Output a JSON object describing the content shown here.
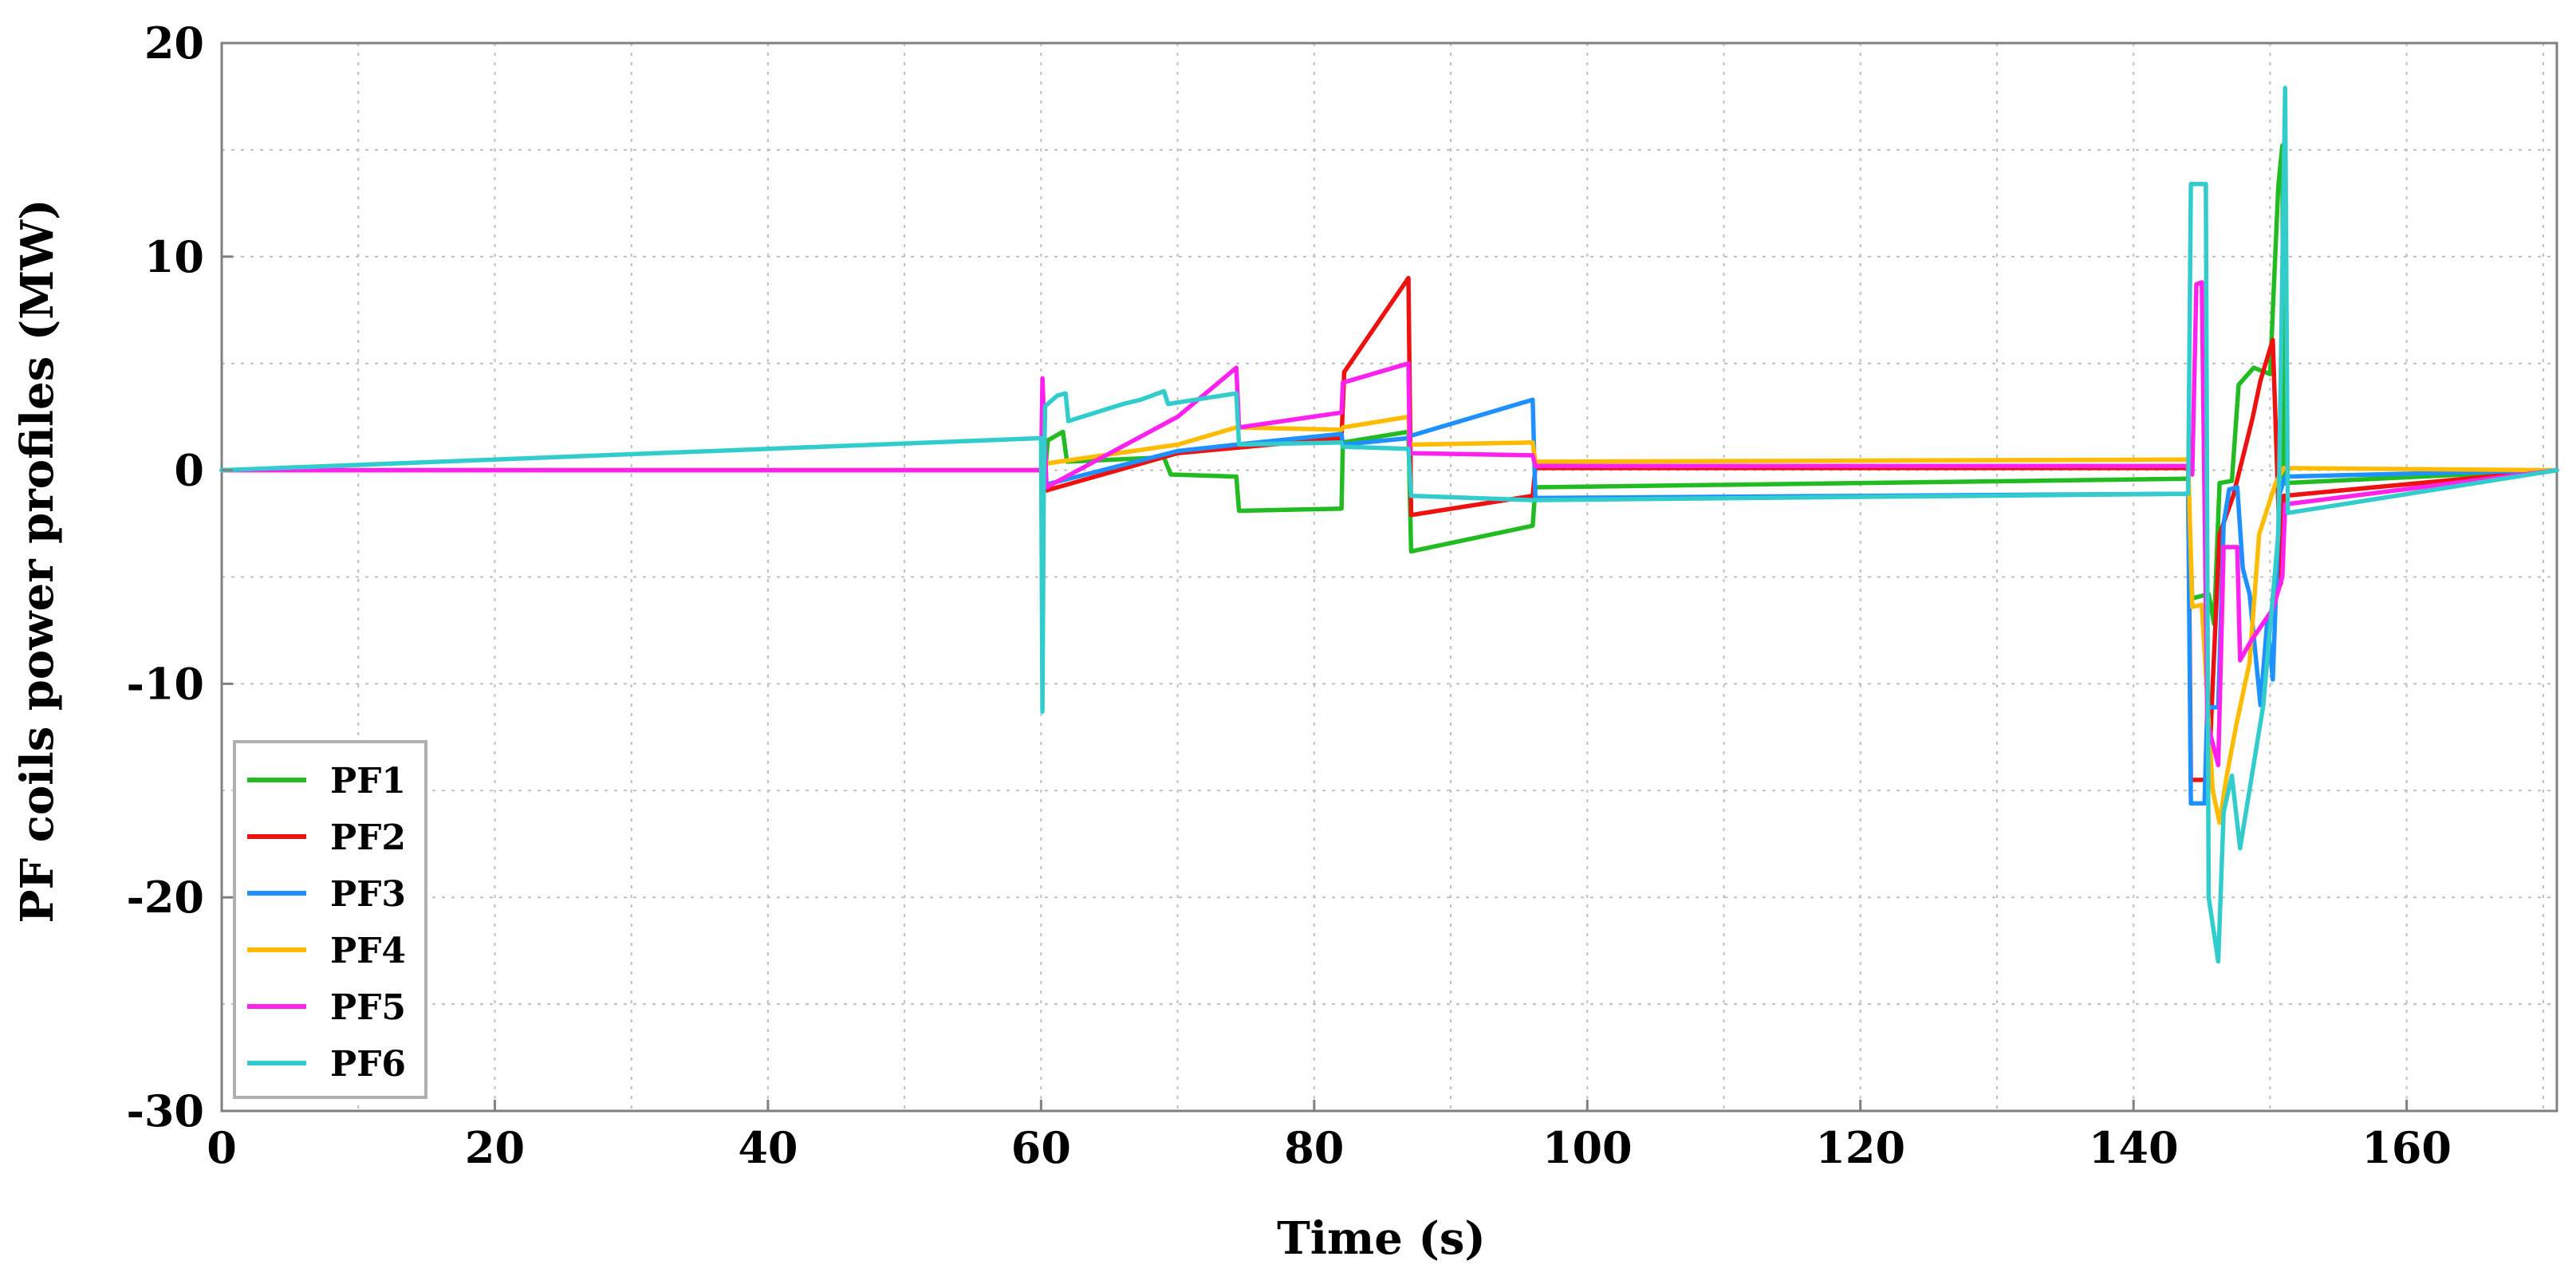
{
  "chart_data": {
    "type": "line",
    "title": "",
    "xlabel": "Time (s)",
    "ylabel": "PF coils power profiles (MW)",
    "xlim": [
      0,
      171
    ],
    "ylim": [
      -30,
      20
    ],
    "x_ticks": [
      0,
      20,
      40,
      60,
      80,
      100,
      120,
      140,
      160
    ],
    "y_ticks": [
      -30,
      -20,
      -10,
      0,
      10,
      20
    ],
    "x_tick_labels": [
      "0",
      "20",
      "40",
      "60",
      "80",
      "100",
      "120",
      "140",
      "160"
    ],
    "y_tick_labels": [
      "-30",
      "-20",
      "-10",
      "0",
      "10",
      "20"
    ],
    "x_minor_grid": [
      10,
      30,
      50,
      70,
      90,
      110,
      130,
      150,
      170
    ],
    "y_minor_grid": [
      -25,
      -15,
      -5,
      5,
      15
    ],
    "grid": true,
    "legend_position": "bottom-left",
    "series": [
      {
        "name": "PF1",
        "color": "#22bb22",
        "points": [
          [
            0,
            0
          ],
          [
            60,
            0
          ],
          [
            60.2,
            -0.8
          ],
          [
            60.5,
            1.4
          ],
          [
            61.6,
            1.8
          ],
          [
            61.9,
            0.4
          ],
          [
            69,
            0.6
          ],
          [
            69.5,
            -0.2
          ],
          [
            74.3,
            -0.3
          ],
          [
            74.5,
            -1.9
          ],
          [
            82,
            -1.8
          ],
          [
            82.1,
            1.3
          ],
          [
            86.9,
            1.8
          ],
          [
            87.1,
            -3.8
          ],
          [
            96,
            -2.6
          ],
          [
            96.2,
            -0.8
          ],
          [
            144,
            -0.4
          ],
          [
            144.3,
            -6
          ],
          [
            145.5,
            -5.8
          ],
          [
            145.9,
            -7.2
          ],
          [
            146.3,
            -0.6
          ],
          [
            147.2,
            -0.5
          ],
          [
            147.7,
            4
          ],
          [
            148.8,
            4.8
          ],
          [
            150,
            4.5
          ],
          [
            150.6,
            13.3
          ],
          [
            150.9,
            15.2
          ],
          [
            151,
            -0.6
          ],
          [
            171,
            0
          ]
        ]
      },
      {
        "name": "PF2",
        "color": "#ee1111",
        "points": [
          [
            0,
            0
          ],
          [
            60,
            0
          ],
          [
            60.1,
            -1
          ],
          [
            70,
            0.8
          ],
          [
            82,
            1.5
          ],
          [
            82.2,
            4.6
          ],
          [
            86.9,
            9
          ],
          [
            87.1,
            -2.1
          ],
          [
            96,
            -1.2
          ],
          [
            96.2,
            0.1
          ],
          [
            144,
            0.1
          ],
          [
            144.2,
            -14.5
          ],
          [
            145.5,
            -14.5
          ],
          [
            145.8,
            -10
          ],
          [
            146.3,
            -3
          ],
          [
            147.3,
            -1.2
          ],
          [
            148.7,
            2.4
          ],
          [
            149.3,
            4.2
          ],
          [
            150.2,
            6.1
          ],
          [
            150.8,
            -5.3
          ],
          [
            151,
            -1.2
          ],
          [
            171,
            0
          ]
        ]
      },
      {
        "name": "PF3",
        "color": "#1e90ff",
        "points": [
          [
            0,
            0
          ],
          [
            60,
            0
          ],
          [
            60.2,
            -0.7
          ],
          [
            70,
            0.9
          ],
          [
            74.3,
            1.2
          ],
          [
            82,
            1.7
          ],
          [
            82.1,
            1.2
          ],
          [
            86.9,
            1.5
          ],
          [
            87,
            1.6
          ],
          [
            96,
            3.3
          ],
          [
            96.2,
            -1.3
          ],
          [
            144,
            -1.1
          ],
          [
            144.2,
            -15.6
          ],
          [
            145.2,
            -15.6
          ],
          [
            145.4,
            -11.1
          ],
          [
            146.2,
            -11.1
          ],
          [
            146.6,
            -2.5
          ],
          [
            147,
            -0.9
          ],
          [
            147.6,
            -0.8
          ],
          [
            148,
            -4.6
          ],
          [
            148.5,
            -5.8
          ],
          [
            149.3,
            -11
          ],
          [
            149.8,
            -7
          ],
          [
            150.2,
            -9.8
          ],
          [
            150.7,
            -1.1
          ],
          [
            151.1,
            -0.3
          ],
          [
            171,
            0
          ]
        ]
      },
      {
        "name": "PF4",
        "color": "#ffbb00",
        "points": [
          [
            0,
            0
          ],
          [
            60,
            0
          ],
          [
            60.2,
            0.3
          ],
          [
            70,
            1.2
          ],
          [
            74.3,
            2
          ],
          [
            82,
            1.9
          ],
          [
            82.1,
            2
          ],
          [
            86.9,
            2.5
          ],
          [
            87,
            1.2
          ],
          [
            96,
            1.3
          ],
          [
            96.2,
            0.4
          ],
          [
            144,
            0.5
          ],
          [
            144.3,
            -6.4
          ],
          [
            145,
            -6.3
          ],
          [
            145.8,
            -15
          ],
          [
            146.3,
            -16.5
          ],
          [
            146.8,
            -14.4
          ],
          [
            147.5,
            -12
          ],
          [
            148.5,
            -9
          ],
          [
            149.2,
            -3
          ],
          [
            150.4,
            -0.6
          ],
          [
            151,
            0.1
          ],
          [
            171,
            0
          ]
        ]
      },
      {
        "name": "PF5",
        "color": "#ff22ee",
        "points": [
          [
            0,
            0
          ],
          [
            60,
            0
          ],
          [
            60.1,
            4.3
          ],
          [
            60.4,
            -0.8
          ],
          [
            70,
            2.5
          ],
          [
            74.3,
            4.8
          ],
          [
            74.5,
            2
          ],
          [
            82,
            2.7
          ],
          [
            82.1,
            4.1
          ],
          [
            86.9,
            5
          ],
          [
            87,
            0.8
          ],
          [
            96,
            0.7
          ],
          [
            96.2,
            0.2
          ],
          [
            144,
            0.2
          ],
          [
            144.3,
            -0.2
          ],
          [
            144.6,
            8.7
          ],
          [
            145,
            8.8
          ],
          [
            145.4,
            -11.8
          ],
          [
            146.2,
            -13.8
          ],
          [
            146.6,
            -3.6
          ],
          [
            147.6,
            -3.6
          ],
          [
            147.8,
            -8.9
          ],
          [
            148.6,
            -8
          ],
          [
            150.2,
            -6.5
          ],
          [
            150.9,
            -5
          ],
          [
            151.1,
            -1.6
          ],
          [
            171,
            0
          ]
        ]
      },
      {
        "name": "PF6",
        "color": "#33cccc",
        "points": [
          [
            0,
            0
          ],
          [
            60,
            1.5
          ],
          [
            60.1,
            -11.3
          ],
          [
            60.2,
            -0.5
          ],
          [
            60.3,
            3
          ],
          [
            61.2,
            3.5
          ],
          [
            61.8,
            3.6
          ],
          [
            62,
            2.3
          ],
          [
            66,
            3.1
          ],
          [
            67.3,
            3.3
          ],
          [
            69,
            3.7
          ],
          [
            69.3,
            3.1
          ],
          [
            74.3,
            3.6
          ],
          [
            74.5,
            1.2
          ],
          [
            82,
            1.3
          ],
          [
            82.1,
            1.1
          ],
          [
            86.9,
            1
          ],
          [
            87.1,
            -1.2
          ],
          [
            96,
            -1.4
          ],
          [
            144,
            -1.1
          ],
          [
            144.2,
            13.4
          ],
          [
            145.3,
            13.4
          ],
          [
            145.5,
            -20
          ],
          [
            146.2,
            -23
          ],
          [
            146.6,
            -16
          ],
          [
            147.2,
            -14.3
          ],
          [
            147.8,
            -17.7
          ],
          [
            149.5,
            -11
          ],
          [
            150.6,
            -3
          ],
          [
            151.1,
            17.9
          ],
          [
            151.3,
            -2
          ],
          [
            171,
            0
          ]
        ]
      }
    ]
  }
}
